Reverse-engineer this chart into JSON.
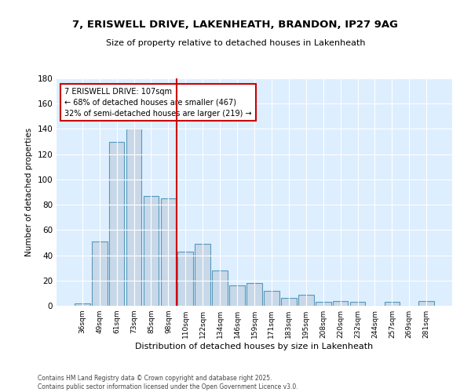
{
  "title": "7, ERISWELL DRIVE, LAKENHEATH, BRANDON, IP27 9AG",
  "subtitle": "Size of property relative to detached houses in Lakenheath",
  "xlabel": "Distribution of detached houses by size in Lakenheath",
  "ylabel": "Number of detached properties",
  "categories": [
    "36sqm",
    "49sqm",
    "61sqm",
    "73sqm",
    "85sqm",
    "98sqm",
    "110sqm",
    "122sqm",
    "134sqm",
    "146sqm",
    "159sqm",
    "171sqm",
    "183sqm",
    "195sqm",
    "208sqm",
    "220sqm",
    "232sqm",
    "244sqm",
    "257sqm",
    "269sqm",
    "281sqm"
  ],
  "values": [
    2,
    51,
    130,
    140,
    87,
    85,
    43,
    49,
    28,
    16,
    18,
    12,
    6,
    9,
    3,
    4,
    3,
    0,
    3,
    0,
    4
  ],
  "bar_color": "#c8d8e8",
  "bar_edge_color": "#5599bb",
  "annotation_line1": "7 ERISWELL DRIVE: 107sqm",
  "annotation_line2": "← 68% of detached houses are smaller (467)",
  "annotation_line3": "32% of semi-detached houses are larger (219) →",
  "vline_color": "#cc0000",
  "vline_index": 6,
  "ylim": [
    0,
    180
  ],
  "yticks": [
    0,
    20,
    40,
    60,
    80,
    100,
    120,
    140,
    160,
    180
  ],
  "background_color": "#ffffff",
  "plot_bg_color": "#ddeeff",
  "grid_color": "#ffffff",
  "footer1": "Contains HM Land Registry data © Crown copyright and database right 2025.",
  "footer2": "Contains public sector information licensed under the Open Government Licence v3.0."
}
